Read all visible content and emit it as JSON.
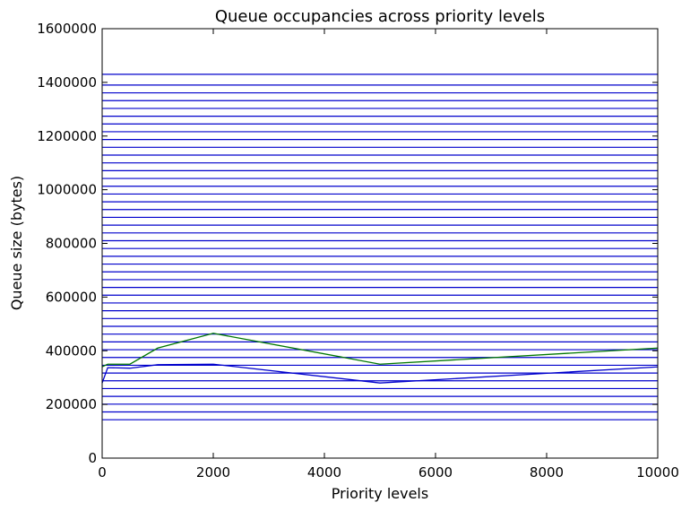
{
  "chart_data": {
    "type": "line",
    "title": "Queue occupancies across priority levels",
    "xlabel": "Priority levels",
    "ylabel": "Queue size (bytes)",
    "xlim": [
      0,
      10000
    ],
    "ylim": [
      0,
      1600000
    ],
    "x_ticks": [
      0,
      2000,
      4000,
      6000,
      8000,
      10000
    ],
    "y_ticks": [
      0,
      200000,
      400000,
      600000,
      800000,
      1000000,
      1200000,
      1400000,
      1600000
    ],
    "x_tick_labels": [
      "0",
      "2000",
      "4000",
      "6000",
      "8000",
      "10000"
    ],
    "y_tick_labels": [
      "0",
      "200000",
      "400000",
      "600000",
      "800000",
      "1000000",
      "1200000",
      "1400000",
      "1600000"
    ],
    "grid": false,
    "legend": "none",
    "horizontal_lines": {
      "color": "#0000cc",
      "y_values": [
        143000,
        172000,
        201000,
        230000,
        259000,
        288000,
        317000,
        346000,
        375000,
        404000,
        433000,
        462000,
        491000,
        520000,
        549000,
        578000,
        607000,
        636000,
        665000,
        694000,
        723000,
        752000,
        781000,
        810000,
        839000,
        868000,
        897000,
        926000,
        955000,
        984000,
        1013000,
        1042000,
        1071000,
        1100000,
        1129000,
        1158000,
        1187000,
        1216000,
        1245000,
        1274000,
        1303000,
        1332000,
        1361000,
        1390000,
        1430000
      ]
    },
    "series": [
      {
        "color": "#0000cc",
        "x": [
          0,
          100,
          500,
          1000,
          2000,
          5000,
          10000
        ],
        "y": [
          280000,
          337000,
          335000,
          348000,
          350000,
          280000,
          340000
        ]
      },
      {
        "color": "#007700",
        "x": [
          0,
          100,
          500,
          1000,
          2000,
          5000,
          10000
        ],
        "y": [
          340000,
          350000,
          350000,
          410000,
          465000,
          350000,
          410000
        ]
      }
    ]
  }
}
